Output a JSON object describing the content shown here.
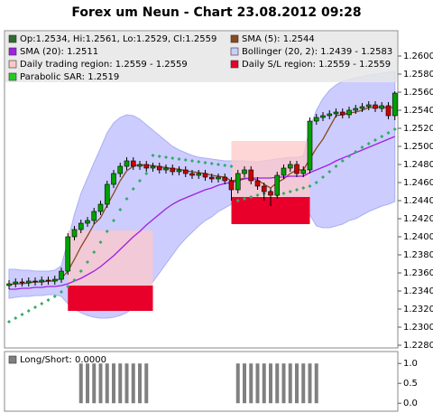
{
  "chart_data": [
    {
      "type": "candlestick",
      "title": "Forex um Neun - Chart 23.08.2012 09:28",
      "ylim": [
        1.2277,
        1.2628
      ],
      "yticks": [
        {
          "value": 1.228,
          "label": "1.2280"
        },
        {
          "value": 1.23,
          "label": "1.2300"
        },
        {
          "value": 1.232,
          "label": "1.2320"
        },
        {
          "value": 1.234,
          "label": "1.2340"
        },
        {
          "value": 1.236,
          "label": "1.2360"
        },
        {
          "value": 1.238,
          "label": "1.2380"
        },
        {
          "value": 1.24,
          "label": "1.2400"
        },
        {
          "value": 1.242,
          "label": "1.2420"
        },
        {
          "value": 1.244,
          "label": "1.2440"
        },
        {
          "value": 1.246,
          "label": "1.2460"
        },
        {
          "value": 1.248,
          "label": "1.2480"
        },
        {
          "value": 1.25,
          "label": "1.2500"
        },
        {
          "value": 1.252,
          "label": "1.2520"
        },
        {
          "value": 1.254,
          "label": "1.2540"
        },
        {
          "value": 1.256,
          "label": "1.2560"
        },
        {
          "value": 1.258,
          "label": "1.2580"
        },
        {
          "value": 1.26,
          "label": "1.2600"
        }
      ],
      "candles": {
        "name": "Op:1.2534, Hi:1.2561, Lo:1.2529, Cl:1.2559",
        "color": "#2e6b2e",
        "up_color": "#00a000",
        "down_color": "#d00000",
        "open": [
          1.2346,
          1.2348,
          1.235,
          1.2349,
          1.2351,
          1.235,
          1.2352,
          1.2351,
          1.2353,
          1.2362,
          1.24,
          1.2408,
          1.2415,
          1.2418,
          1.2428,
          1.2436,
          1.2458,
          1.247,
          1.2478,
          1.2484,
          1.2478,
          1.248,
          1.2476,
          1.2478,
          1.2474,
          1.2476,
          1.2472,
          1.2474,
          1.247,
          1.2468,
          1.247,
          1.2466,
          1.2464,
          1.2466,
          1.2462,
          1.2452,
          1.247,
          1.2474,
          1.2462,
          1.2456,
          1.245,
          1.2446,
          1.2468,
          1.2476,
          1.248,
          1.247,
          1.2474,
          1.2528,
          1.2532,
          1.2534,
          1.2536,
          1.2538,
          1.2535,
          1.254,
          1.2542,
          1.2544,
          1.2546,
          1.2542,
          1.2545,
          1.2534
        ],
        "high": [
          1.2352,
          1.2354,
          1.2354,
          1.2355,
          1.2355,
          1.2356,
          1.2356,
          1.2357,
          1.2366,
          1.2404,
          1.2412,
          1.2419,
          1.2422,
          1.2432,
          1.244,
          1.2462,
          1.2474,
          1.2482,
          1.2488,
          1.2488,
          1.2484,
          1.2484,
          1.2482,
          1.2482,
          1.248,
          1.248,
          1.2478,
          1.2478,
          1.2474,
          1.2474,
          1.2474,
          1.247,
          1.247,
          1.247,
          1.2466,
          1.2474,
          1.2478,
          1.2478,
          1.2466,
          1.246,
          1.2454,
          1.2472,
          1.248,
          1.2484,
          1.2484,
          1.2478,
          1.2532,
          1.2536,
          1.2538,
          1.254,
          1.2542,
          1.2542,
          1.2544,
          1.2546,
          1.2548,
          1.255,
          1.255,
          1.2549,
          1.2549,
          1.2561
        ],
        "low": [
          1.2342,
          1.2344,
          1.2345,
          1.2345,
          1.2346,
          1.2346,
          1.2347,
          1.2347,
          1.2349,
          1.2358,
          1.2396,
          1.2404,
          1.2411,
          1.2414,
          1.2424,
          1.2432,
          1.2454,
          1.2466,
          1.2474,
          1.2474,
          1.2474,
          1.2472,
          1.2472,
          1.247,
          1.247,
          1.2468,
          1.2468,
          1.2466,
          1.2464,
          1.2464,
          1.2462,
          1.246,
          1.246,
          1.2458,
          1.244,
          1.2448,
          1.2466,
          1.2458,
          1.2452,
          1.244,
          1.2434,
          1.2442,
          1.2464,
          1.2472,
          1.2466,
          1.2466,
          1.247,
          1.2524,
          1.2528,
          1.253,
          1.2532,
          1.2531,
          1.2531,
          1.2536,
          1.2538,
          1.254,
          1.2538,
          1.2538,
          1.253,
          1.2529
        ],
        "close": [
          1.2348,
          1.235,
          1.2349,
          1.2351,
          1.235,
          1.2352,
          1.2351,
          1.2353,
          1.2362,
          1.24,
          1.2408,
          1.2415,
          1.2418,
          1.2428,
          1.2436,
          1.2458,
          1.247,
          1.2478,
          1.2484,
          1.2478,
          1.248,
          1.2476,
          1.2478,
          1.2474,
          1.2476,
          1.2472,
          1.2474,
          1.247,
          1.2468,
          1.247,
          1.2466,
          1.2464,
          1.2466,
          1.2462,
          1.2452,
          1.247,
          1.2474,
          1.2462,
          1.2456,
          1.245,
          1.2446,
          1.2468,
          1.2476,
          1.248,
          1.247,
          1.2474,
          1.2528,
          1.2532,
          1.2534,
          1.2536,
          1.2538,
          1.2535,
          1.254,
          1.2542,
          1.2544,
          1.2546,
          1.2542,
          1.2545,
          1.2534,
          1.2559
        ]
      },
      "band": {
        "name": "Bollinger (20, 2): 1.2439 - 1.2583",
        "color": "#aab0f0",
        "fill": "#ccccff",
        "upper": [
          1.2364,
          1.2364,
          1.2363,
          1.2363,
          1.2362,
          1.2362,
          1.2362,
          1.2363,
          1.2368,
          1.2395,
          1.2425,
          1.2448,
          1.2465,
          1.2482,
          1.2498,
          1.2515,
          1.2526,
          1.2532,
          1.2535,
          1.2534,
          1.253,
          1.2524,
          1.2518,
          1.2512,
          1.2506,
          1.25,
          1.2496,
          1.2493,
          1.249,
          1.2488,
          1.2487,
          1.2486,
          1.2485,
          1.2484,
          1.2484,
          1.2484,
          1.2484,
          1.2483,
          1.2483,
          1.2484,
          1.2485,
          1.2486,
          1.2487,
          1.2488,
          1.2488,
          1.2489,
          1.252,
          1.254,
          1.2553,
          1.2562,
          1.2568,
          1.2572,
          1.2574,
          1.2576,
          1.2577,
          1.2579,
          1.258,
          1.2581,
          1.2582,
          1.2583
        ],
        "lower": [
          1.2332,
          1.2333,
          1.2334,
          1.2334,
          1.2335,
          1.2335,
          1.2336,
          1.2336,
          1.2334,
          1.2326,
          1.232,
          1.2316,
          1.2313,
          1.2311,
          1.231,
          1.231,
          1.2311,
          1.2313,
          1.2316,
          1.2322,
          1.233,
          1.234,
          1.235,
          1.236,
          1.237,
          1.238,
          1.239,
          1.2398,
          1.2405,
          1.2412,
          1.2418,
          1.2422,
          1.2428,
          1.2432,
          1.2436,
          1.2438,
          1.244,
          1.2444,
          1.2446,
          1.2446,
          1.2446,
          1.2446,
          1.2445,
          1.2444,
          1.2444,
          1.2443,
          1.2424,
          1.2412,
          1.241,
          1.241,
          1.2412,
          1.2414,
          1.2418,
          1.242,
          1.2424,
          1.2428,
          1.2431,
          1.2434,
          1.2436,
          1.2439
        ]
      },
      "series": [
        {
          "name": "SMA (5): 1.2544",
          "color": "#8b4a1f",
          "values": [
            1.2347,
            1.2348,
            1.2348,
            1.2349,
            1.235,
            1.235,
            1.2351,
            1.2351,
            1.2354,
            1.2362,
            1.2375,
            1.2389,
            1.2401,
            1.2414,
            1.2421,
            1.2435,
            1.2448,
            1.2462,
            1.2473,
            1.2478,
            1.248,
            1.2479,
            1.2479,
            1.2477,
            1.2477,
            1.2475,
            1.2475,
            1.2473,
            1.2472,
            1.2471,
            1.247,
            1.2468,
            1.2467,
            1.2466,
            1.2462,
            1.2463,
            1.2465,
            1.2464,
            1.2463,
            1.2458,
            1.2454,
            1.246,
            1.2464,
            1.247,
            1.2474,
            1.2474,
            1.2486,
            1.2498,
            1.2508,
            1.2521,
            1.2534,
            1.2535,
            1.2537,
            1.2538,
            1.254,
            1.2543,
            1.2543,
            1.2544,
            1.2542,
            1.2544
          ]
        },
        {
          "name": "SMA (20): 1.2511",
          "color": "#a020e0",
          "values": [
            1.2342,
            1.2342,
            1.2343,
            1.2343,
            1.2344,
            1.2344,
            1.2345,
            1.2345,
            1.2346,
            1.2348,
            1.2351,
            1.2354,
            1.2358,
            1.2362,
            1.2367,
            1.2373,
            1.2379,
            1.2386,
            1.2393,
            1.24,
            1.2406,
            1.2413,
            1.2419,
            1.2425,
            1.2431,
            1.2436,
            1.244,
            1.2443,
            1.2446,
            1.2449,
            1.2452,
            1.2454,
            1.2457,
            1.2459,
            1.246,
            1.2462,
            1.2464,
            1.2465,
            1.2465,
            1.2465,
            1.2465,
            1.2466,
            1.2466,
            1.2467,
            1.2467,
            1.2467,
            1.2471,
            1.2474,
            1.2477,
            1.248,
            1.2484,
            1.2487,
            1.249,
            1.2493,
            1.2496,
            1.2499,
            1.2502,
            1.2505,
            1.2508,
            1.2511
          ]
        }
      ],
      "sar": {
        "name": "Parabolic SAR: 1.2519",
        "color": "#33aa66",
        "legend_color": "#22cc22",
        "values": [
          1.2306,
          1.231,
          1.2314,
          1.2318,
          1.2322,
          1.2326,
          1.233,
          1.2334,
          1.2339,
          1.2345,
          1.2352,
          1.2362,
          1.2372,
          1.2383,
          1.2394,
          1.2406,
          1.2418,
          1.243,
          1.2442,
          1.2453,
          1.2462,
          1.247,
          1.249,
          1.2489,
          1.2488,
          1.2487,
          1.2486,
          1.2485,
          1.2484,
          1.2483,
          1.2482,
          1.2481,
          1.248,
          1.2479,
          1.2478,
          1.244,
          1.2442,
          1.2444,
          1.2446,
          1.2448,
          1.245,
          1.2446,
          1.2448,
          1.245,
          1.2452,
          1.2454,
          1.2456,
          1.246,
          1.2466,
          1.2472,
          1.2478,
          1.2484,
          1.2489,
          1.2494,
          1.2499,
          1.2503,
          1.2507,
          1.2511,
          1.2515,
          1.2519
        ]
      },
      "trading_regions": {
        "name": "Daily trading region: 1.2559 - 1.2559",
        "color": "#ffc8c8",
        "regions": [
          {
            "start": 9,
            "end": 22,
            "high": 1.2407,
            "low": 1.2346
          },
          {
            "start": 34,
            "end": 46,
            "high": 1.2506,
            "low": 1.2444
          }
        ]
      },
      "sl_regions": {
        "name": "Daily S/L region: 1.2559 - 1.2559",
        "color": "#e8002a",
        "regions": [
          {
            "start": 9,
            "end": 22,
            "high": 1.2346,
            "low": 1.2318
          },
          {
            "start": 34,
            "end": 46,
            "high": 1.2444,
            "low": 1.2414
          }
        ]
      }
    },
    {
      "type": "bar",
      "ylim": [
        -0.2,
        1.3
      ],
      "yticks": [
        {
          "value": 0,
          "label": "0.0"
        },
        {
          "value": 0.5,
          "label": "0.5"
        },
        {
          "value": 1,
          "label": "1.0"
        }
      ],
      "series": [
        {
          "name": "Long/Short: 0.0000",
          "color": "#808080",
          "values": [
            0,
            0,
            0,
            0,
            0,
            0,
            0,
            0,
            0,
            0,
            0,
            1,
            1,
            1,
            1,
            1,
            1,
            1,
            1,
            1,
            1,
            1,
            0,
            0,
            0,
            0,
            0,
            0,
            0,
            0,
            0,
            0,
            0,
            0,
            0,
            1,
            1,
            1,
            1,
            1,
            1,
            1,
            1,
            1,
            1,
            1,
            1,
            1,
            0,
            0,
            0,
            0,
            0,
            0,
            0,
            0,
            0,
            0,
            0,
            0
          ]
        }
      ]
    }
  ]
}
